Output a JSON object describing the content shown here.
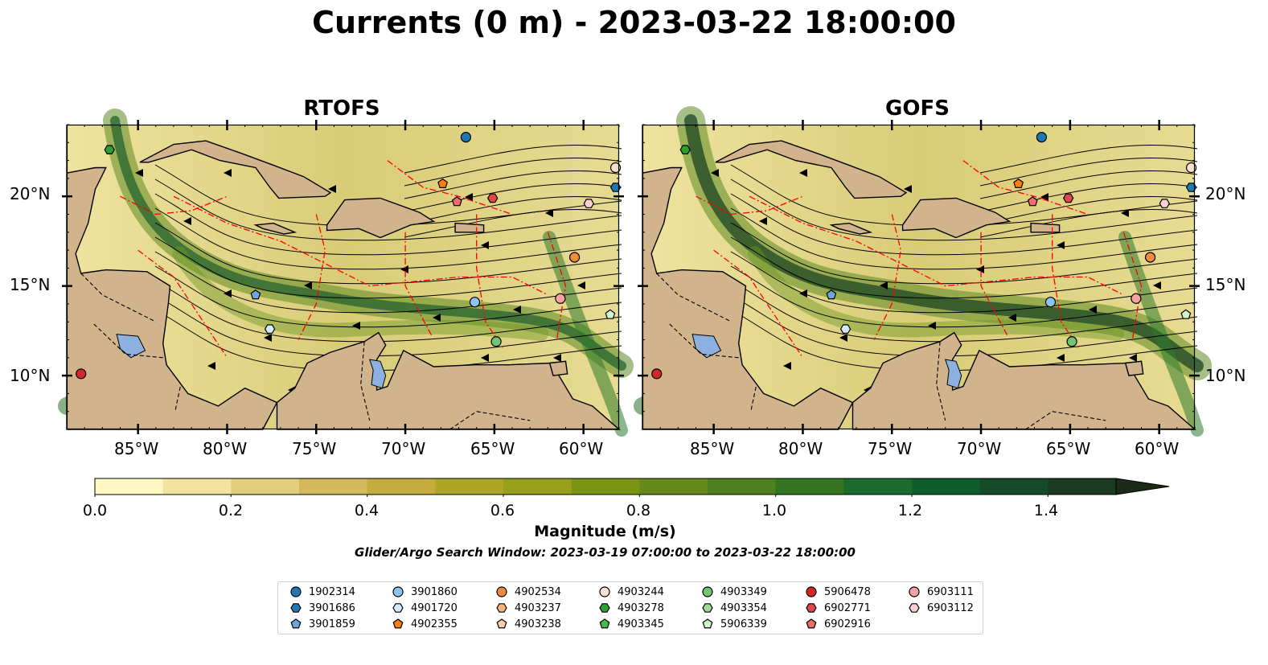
{
  "title": "Currents (0 m) - 2023-03-22 18:00:00",
  "panels": [
    {
      "title": "RTOFS"
    },
    {
      "title": "GOFS"
    }
  ],
  "map": {
    "lon_ticks": [
      "85°W",
      "80°W",
      "75°W",
      "70°W",
      "65°W",
      "60°W"
    ],
    "lat_ticks": [
      "20°N",
      "15°N",
      "10°N"
    ],
    "lon_range": [
      -89,
      -58
    ],
    "lat_range": [
      7,
      24
    ],
    "colors": {
      "land": "#d2b48c",
      "water_inland": "#8cb0e0",
      "eez": "#ff0000",
      "border": "#000000"
    }
  },
  "colorbar": {
    "label": "Magnitude (m/s)",
    "ticks": [
      "0.0",
      "0.2",
      "0.4",
      "0.6",
      "0.8",
      "1.0",
      "1.2",
      "1.4"
    ],
    "range": [
      0,
      1.5
    ],
    "extend": "max",
    "colors": [
      "#fff8c4",
      "#f2e3a0",
      "#e3cd7e",
      "#d3b95c",
      "#c4ac3f",
      "#aea42a",
      "#97a01c",
      "#7c9414",
      "#65891a",
      "#4f801f",
      "#357423",
      "#1c6a2e",
      "#0f5c2c",
      "#144a27",
      "#1c3a22",
      "#1d2a17"
    ]
  },
  "search_window": "Glider/Argo Search Window: 2023-03-19 07:00:00 to 2023-03-22 18:00:00",
  "legend": [
    {
      "id": "1902314",
      "color": "#1f77b4",
      "marker": "circle"
    },
    {
      "id": "3901686",
      "color": "#1f77b4",
      "marker": "hexagon"
    },
    {
      "id": "3901859",
      "color": "#6fa6dc",
      "marker": "pentagon"
    },
    {
      "id": "3901860",
      "color": "#8ec3ec",
      "marker": "circle"
    },
    {
      "id": "4901720",
      "color": "#d3ebfc",
      "marker": "hexagon"
    },
    {
      "id": "4902355",
      "color": "#ff7f0e",
      "marker": "pentagon"
    },
    {
      "id": "4902534",
      "color": "#f08a3c",
      "marker": "circle"
    },
    {
      "id": "4903237",
      "color": "#fdb27a",
      "marker": "hexagon"
    },
    {
      "id": "4903238",
      "color": "#fdd0ae",
      "marker": "pentagon"
    },
    {
      "id": "4903244",
      "color": "#fbe1cf",
      "marker": "circle"
    },
    {
      "id": "4903278",
      "color": "#2ca02c",
      "marker": "hexagon"
    },
    {
      "id": "4903345",
      "color": "#4cb84c",
      "marker": "pentagon"
    },
    {
      "id": "4903349",
      "color": "#74c476",
      "marker": "circle"
    },
    {
      "id": "4903354",
      "color": "#a1d99b",
      "marker": "hexagon"
    },
    {
      "id": "5906339",
      "color": "#d3f2cf",
      "marker": "pentagon"
    },
    {
      "id": "5906478",
      "color": "#d62728",
      "marker": "circle"
    },
    {
      "id": "6902771",
      "color": "#e0474a",
      "marker": "hexagon"
    },
    {
      "id": "6902916",
      "color": "#ee6e6e",
      "marker": "pentagon"
    },
    {
      "id": "6903111",
      "color": "#f4a3a3",
      "marker": "circle"
    },
    {
      "id": "6903112",
      "color": "#fbd0d0",
      "marker": "hexagon"
    }
  ],
  "floats": [
    {
      "id": "1902314",
      "lon": -66.6,
      "lat": 23.3
    },
    {
      "id": "3901686",
      "lon": -58.2,
      "lat": 20.5
    },
    {
      "id": "3901859",
      "lon": -78.4,
      "lat": 14.5
    },
    {
      "id": "3901860",
      "lon": -66.1,
      "lat": 14.1
    },
    {
      "id": "4901720",
      "lon": -77.6,
      "lat": 12.6
    },
    {
      "id": "4902534",
      "lon": -60.5,
      "lat": 16.6
    },
    {
      "id": "4902355",
      "lon": -67.9,
      "lat": 20.7
    },
    {
      "id": "4903244",
      "lon": -58.2,
      "lat": 21.6
    },
    {
      "id": "4903278",
      "lon": -86.6,
      "lat": 22.6
    },
    {
      "id": "4903349",
      "lon": -64.9,
      "lat": 11.9
    },
    {
      "id": "5906339",
      "lon": -58.5,
      "lat": 13.4
    },
    {
      "id": "5906478",
      "lon": -88.2,
      "lat": 10.1
    },
    {
      "id": "6902771",
      "lon": -65.1,
      "lat": 19.9
    },
    {
      "id": "6902916",
      "lon": -67.1,
      "lat": 19.7
    },
    {
      "id": "6903111",
      "lon": -61.3,
      "lat": 14.3
    },
    {
      "id": "6903112",
      "lon": -59.7,
      "lat": 19.6
    }
  ]
}
